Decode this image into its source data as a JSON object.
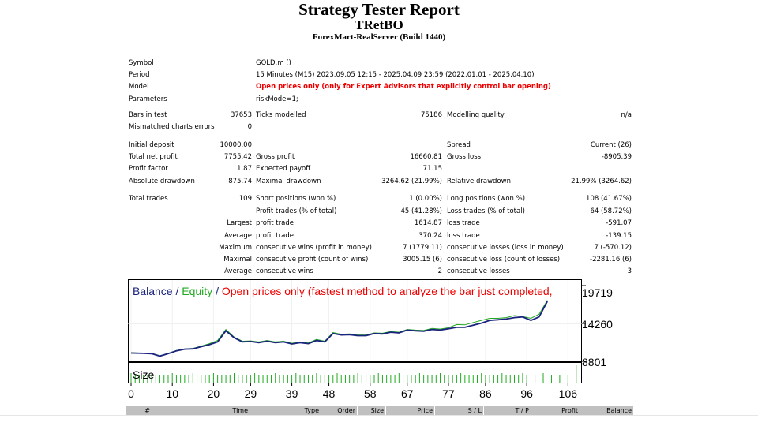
{
  "header": {
    "title": "Strategy Tester Report",
    "expert": "TRetBO",
    "server": "ForexMart-RealServer (Build 1440)"
  },
  "settings": {
    "symbol_label": "Symbol",
    "symbol_value": "GOLD.m ()",
    "period_label": "Period",
    "period_value": "15 Minutes (M15) 2023.09.05 12:15 - 2025.04.09 23:59 (2022.01.01 - 2025.04.10)",
    "model_label": "Model",
    "model_value": "Open prices only (only for Expert Advisors that explicitly control bar opening)",
    "parameters_label": "Parameters",
    "parameters_value": "riskMode=1;"
  },
  "stats": {
    "bars_label": "Bars in test",
    "bars_value": "37653",
    "ticks_label": "Ticks modelled",
    "ticks_value": "75186",
    "quality_label": "Modelling quality",
    "quality_value": "n/a",
    "mismatch_label": "Mismatched charts errors",
    "mismatch_value": "0",
    "deposit_label": "Initial deposit",
    "deposit_value": "10000.00",
    "spread_label": "Spread",
    "spread_value": "Current (26)",
    "net_label": "Total net profit",
    "net_value": "7755.42",
    "gross_profit_label": "Gross profit",
    "gross_profit_value": "16660.81",
    "gross_loss_label": "Gross loss",
    "gross_loss_value": "-8905.39",
    "pf_label": "Profit factor",
    "pf_value": "1.87",
    "payoff_label": "Expected payoff",
    "payoff_value": "71.15",
    "absdd_label": "Absolute drawdown",
    "absdd_value": "875.74",
    "maxdd_label": "Maximal drawdown",
    "maxdd_value": "3264.62 (21.99%)",
    "reldd_label": "Relative drawdown",
    "reldd_value": "21.99% (3264.62)",
    "trades_label": "Total trades",
    "trades_value": "109",
    "short_label": "Short positions (won %)",
    "short_value": "1 (0.00%)",
    "long_label": "Long positions (won %)",
    "long_value": "108 (41.67%)",
    "profit_trades_label": "Profit trades (% of total)",
    "profit_trades_value": "45 (41.28%)",
    "loss_trades_label": "Loss trades (% of total)",
    "loss_trades_value": "64 (58.72%)",
    "largest_label": "Largest",
    "largest_profit_label": "profit trade",
    "largest_profit_value": "1614.87",
    "largest_loss_label": "loss trade",
    "largest_loss_value": "-591.07",
    "average_label": "Average",
    "average_profit_label": "profit trade",
    "average_profit_value": "370.24",
    "average_loss_label": "loss trade",
    "average_loss_value": "-139.15",
    "maximum_label": "Maximum",
    "max_wins_label": "consecutive wins (profit in money)",
    "max_wins_value": "7 (1779.11)",
    "max_losses_label": "consecutive losses (loss in money)",
    "max_losses_value": "7 (-570.12)",
    "maximal_label": "Maximal",
    "maximal_profit_label": "consecutive profit (count of wins)",
    "maximal_profit_value": "3005.15 (6)",
    "maximal_loss_label": "consecutive loss (count of losses)",
    "maximal_loss_value": "-2281.16 (6)",
    "avg2_label": "Average",
    "avg_wins_label": "consecutive wins",
    "avg_wins_value": "2",
    "avg_losses_label": "consecutive losses",
    "avg_losses_value": "3"
  },
  "chart": {
    "legend_balance": "Balance",
    "legend_sep1": " / ",
    "legend_equity": "Equity",
    "legend_sep2": " / ",
    "legend_model": "Open prices only (fastest method to analyze the bar just completed,",
    "size_label": "Size",
    "colors": {
      "balance": "#1a237e",
      "equity": "#22aa22",
      "model": "#ee0000",
      "size_bars": "#22aa22"
    }
  },
  "chart_data": {
    "type": "line",
    "y_ticks": [
      "19719",
      "14260",
      "8801"
    ],
    "ylim": [
      8801,
      19719
    ],
    "x_ticks": [
      "0",
      "10",
      "20",
      "29",
      "39",
      "48",
      "58",
      "67",
      "77",
      "86",
      "96",
      "106"
    ],
    "xlim": [
      0,
      109
    ],
    "series": [
      {
        "name": "Balance",
        "x": [
          0,
          3,
          5,
          7,
          9,
          11,
          13,
          15,
          17,
          19,
          21,
          23,
          25,
          27,
          29,
          31,
          33,
          35,
          37,
          39,
          41,
          43,
          45,
          47,
          49,
          51,
          53,
          55,
          57,
          59,
          61,
          63,
          65,
          67,
          69,
          71,
          73,
          75,
          77,
          79,
          81,
          83,
          85,
          87,
          89,
          91,
          93,
          95,
          97,
          99,
          101
        ],
        "values": [
          10000,
          9950,
          9900,
          9550,
          9900,
          10300,
          10550,
          10600,
          10900,
          11200,
          11600,
          13200,
          12200,
          11600,
          11650,
          11500,
          11700,
          11500,
          11600,
          11300,
          11500,
          11350,
          11800,
          11600,
          12800,
          12600,
          12650,
          12500,
          12500,
          12800,
          12750,
          13000,
          12900,
          13300,
          13200,
          13150,
          13400,
          13300,
          13500,
          13700,
          13700,
          14000,
          14300,
          14700,
          14800,
          14900,
          15100,
          15200,
          14700,
          15200,
          17450
        ]
      },
      {
        "name": "Equity",
        "x": [
          0,
          3,
          5,
          7,
          9,
          11,
          13,
          15,
          17,
          19,
          21,
          23,
          25,
          27,
          29,
          31,
          33,
          35,
          37,
          39,
          41,
          43,
          45,
          47,
          49,
          51,
          53,
          55,
          57,
          59,
          61,
          63,
          65,
          67,
          69,
          71,
          73,
          75,
          77,
          79,
          81,
          83,
          85,
          87,
          89,
          91,
          93,
          95,
          97,
          99,
          101
        ],
        "values": [
          10050,
          9950,
          9950,
          9600,
          9950,
          10350,
          10600,
          10650,
          11000,
          11350,
          11800,
          13400,
          12300,
          11700,
          11750,
          11600,
          11800,
          11600,
          11700,
          11400,
          11600,
          11450,
          11950,
          11700,
          12950,
          12700,
          12750,
          12600,
          12600,
          12900,
          12850,
          13100,
          13000,
          13400,
          13300,
          13250,
          13550,
          13450,
          13650,
          14100,
          14050,
          14400,
          14700,
          15000,
          15000,
          15100,
          15400,
          15250,
          15000,
          15600,
          17600
        ]
      }
    ]
  },
  "trades_table": {
    "columns": [
      "#",
      "Time",
      "Type",
      "Order",
      "Size",
      "Price",
      "S / L",
      "T / P",
      "Profit",
      "Balance"
    ]
  }
}
